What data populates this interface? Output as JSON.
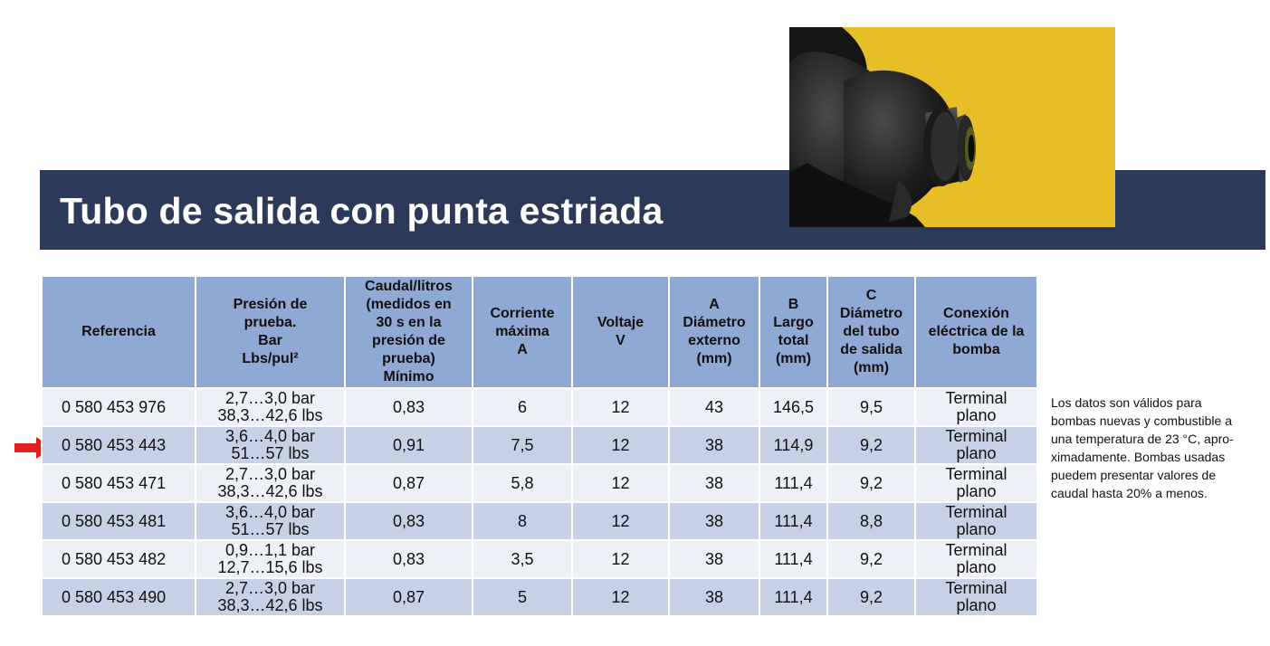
{
  "header": {
    "title": "Tubo de salida con punta estriada"
  },
  "table": {
    "headers": [
      [
        "Referencia"
      ],
      [
        "Presión de",
        "prueba.",
        "Bar",
        "Lbs/pul²"
      ],
      [
        "Caudal/litros",
        "(medidos en",
        "30 s en la",
        "presión de",
        "prueba)",
        "Mínimo"
      ],
      [
        "Corriente",
        "máxima",
        "A"
      ],
      [
        "Voltaje",
        "V"
      ],
      [
        "A",
        "Diámetro",
        "externo",
        "(mm)"
      ],
      [
        "B",
        "Largo",
        "total",
        "(mm)"
      ],
      [
        "C",
        "Diámetro",
        "del tubo",
        "de salida",
        "(mm)"
      ],
      [
        "Conexión",
        "eléctrica de la",
        "bomba"
      ]
    ],
    "rows": [
      {
        "referencia": "0 580 453 976",
        "presion_bar": "2,7…3,0 bar",
        "presion_lbs": "38,3…42,6 lbs",
        "caudal": "0,83",
        "corriente": "6",
        "voltaje": "12",
        "diametro_externo": "43",
        "largo_total": "146,5",
        "diametro_tubo": "9,5",
        "conexion_1": "Terminal",
        "conexion_2": "plano"
      },
      {
        "referencia": "0 580 453 443",
        "presion_bar": "3,6…4,0 bar",
        "presion_lbs": "51…57 lbs",
        "caudal": "0,91",
        "corriente": "7,5",
        "voltaje": "12",
        "diametro_externo": "38",
        "largo_total": "114,9",
        "diametro_tubo": "9,2",
        "conexion_1": "Terminal",
        "conexion_2": "plano"
      },
      {
        "referencia": "0 580 453 471",
        "presion_bar": "2,7…3,0 bar",
        "presion_lbs": "38,3…42,6 lbs",
        "caudal": "0,87",
        "corriente": "5,8",
        "voltaje": "12",
        "diametro_externo": "38",
        "largo_total": "111,4",
        "diametro_tubo": "9,2",
        "conexion_1": "Terminal",
        "conexion_2": "plano"
      },
      {
        "referencia": "0 580 453 481",
        "presion_bar": "3,6…4,0 bar",
        "presion_lbs": "51…57 lbs",
        "caudal": "0,83",
        "corriente": "8",
        "voltaje": "12",
        "diametro_externo": "38",
        "largo_total": "111,4",
        "diametro_tubo": "8,8",
        "conexion_1": "Terminal",
        "conexion_2": "plano"
      },
      {
        "referencia": "0 580 453 482",
        "presion_bar": "0,9…1,1 bar",
        "presion_lbs": "12,7…15,6 lbs",
        "caudal": "0,83",
        "corriente": "3,5",
        "voltaje": "12",
        "diametro_externo": "38",
        "largo_total": "111,4",
        "diametro_tubo": "9,2",
        "conexion_1": "Terminal",
        "conexion_2": "plano"
      },
      {
        "referencia": "0 580 453 490",
        "presion_bar": "2,7…3,0 bar",
        "presion_lbs": "38,3…42,6 lbs",
        "caudal": "0,87",
        "corriente": "5",
        "voltaje": "12",
        "diametro_externo": "38",
        "largo_total": "111,4",
        "diametro_tubo": "9,2",
        "conexion_1": "Terminal",
        "conexion_2": "plano"
      }
    ]
  },
  "note": {
    "lines": [
      "Los datos son válidos para",
      "bombas nuevas y combustible a",
      "una temperatura de 23 °C, apro-",
      "ximadamente. Bombas usadas",
      "puedem presentar valores de",
      "caudal hasta 20% a menos."
    ]
  },
  "colors": {
    "banner": "#2c3a5a",
    "header_cells": "#8fa8d4",
    "row_light": "#eef0f8",
    "row_dark": "#c7d1e6",
    "photo_background": "#e6bf26",
    "arrow": "#e02020"
  },
  "icons": {
    "pointer": "red-arrow-icon",
    "photo": "fuel-pump-outlet-photo"
  }
}
